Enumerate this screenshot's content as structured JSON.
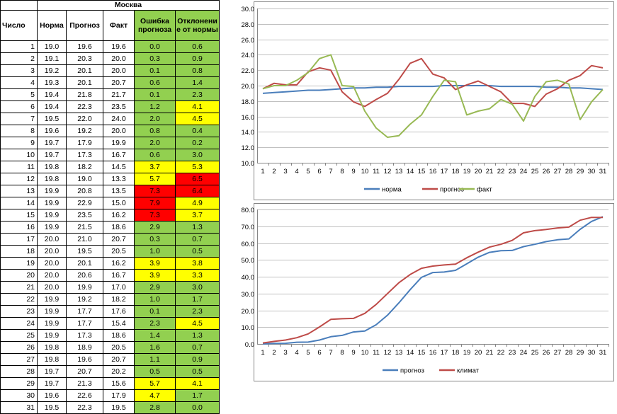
{
  "table": {
    "city": "Москва",
    "headers": {
      "day": "Число",
      "norm": "Норма",
      "forecast": "Прогноз",
      "fact": "Факт",
      "error": "Ошибка прогноза",
      "deviation": "Отклонени е от нормы"
    },
    "rows": [
      {
        "day": "1",
        "norm": "19.0",
        "forecast": "19.6",
        "fact": "19.6",
        "error": "0.0",
        "deviation": "0.6",
        "err_status": "ok",
        "dev_status": "ok"
      },
      {
        "day": "2",
        "norm": "19.1",
        "forecast": "20.3",
        "fact": "20.0",
        "error": "0.3",
        "deviation": "0.9",
        "err_status": "ok",
        "dev_status": "ok"
      },
      {
        "day": "3",
        "norm": "19.2",
        "forecast": "20.1",
        "fact": "20.0",
        "error": "0.1",
        "deviation": "0.8",
        "err_status": "ok",
        "dev_status": "ok"
      },
      {
        "day": "4",
        "norm": "19.3",
        "forecast": "20.1",
        "fact": "20.7",
        "error": "0.6",
        "deviation": "1.4",
        "err_status": "ok",
        "dev_status": "ok"
      },
      {
        "day": "5",
        "norm": "19.4",
        "forecast": "21.8",
        "fact": "21.7",
        "error": "0.1",
        "deviation": "2.3",
        "err_status": "ok",
        "dev_status": "ok"
      },
      {
        "day": "6",
        "norm": "19.4",
        "forecast": "22.3",
        "fact": "23.5",
        "error": "1.2",
        "deviation": "4.1",
        "err_status": "ok",
        "dev_status": "warn"
      },
      {
        "day": "7",
        "norm": "19.5",
        "forecast": "22.0",
        "fact": "24.0",
        "error": "2.0",
        "deviation": "4.5",
        "err_status": "ok",
        "dev_status": "warn"
      },
      {
        "day": "8",
        "norm": "19.6",
        "forecast": "19.2",
        "fact": "20.0",
        "error": "0.8",
        "deviation": "0.4",
        "err_status": "ok",
        "dev_status": "ok"
      },
      {
        "day": "9",
        "norm": "19.7",
        "forecast": "17.9",
        "fact": "19.9",
        "error": "2.0",
        "deviation": "0.2",
        "err_status": "ok",
        "dev_status": "ok"
      },
      {
        "day": "10",
        "norm": "19.7",
        "forecast": "17.3",
        "fact": "16.7",
        "error": "0.6",
        "deviation": "3.0",
        "err_status": "ok",
        "dev_status": "ok"
      },
      {
        "day": "11",
        "norm": "19.8",
        "forecast": "18.2",
        "fact": "14.5",
        "error": "3.7",
        "deviation": "5.3",
        "err_status": "warn",
        "dev_status": "warn"
      },
      {
        "day": "12",
        "norm": "19.8",
        "forecast": "19.0",
        "fact": "13.3",
        "error": "5.7",
        "deviation": "6.5",
        "err_status": "warn",
        "dev_status": "bad"
      },
      {
        "day": "13",
        "norm": "19.9",
        "forecast": "20.8",
        "fact": "13.5",
        "error": "7.3",
        "deviation": "6.4",
        "err_status": "bad",
        "dev_status": "bad"
      },
      {
        "day": "14",
        "norm": "19.9",
        "forecast": "22.9",
        "fact": "15.0",
        "error": "7.9",
        "deviation": "4.9",
        "err_status": "bad",
        "dev_status": "warn"
      },
      {
        "day": "15",
        "norm": "19.9",
        "forecast": "23.5",
        "fact": "16.2",
        "error": "7.3",
        "deviation": "3.7",
        "err_status": "bad",
        "dev_status": "warn"
      },
      {
        "day": "16",
        "norm": "19.9",
        "forecast": "21.5",
        "fact": "18.6",
        "error": "2.9",
        "deviation": "1.3",
        "err_status": "ok",
        "dev_status": "ok"
      },
      {
        "day": "17",
        "norm": "20.0",
        "forecast": "21.0",
        "fact": "20.7",
        "error": "0.3",
        "deviation": "0.7",
        "err_status": "ok",
        "dev_status": "ok"
      },
      {
        "day": "18",
        "norm": "20.0",
        "forecast": "19.5",
        "fact": "20.5",
        "error": "1.0",
        "deviation": "0.5",
        "err_status": "ok",
        "dev_status": "ok"
      },
      {
        "day": "19",
        "norm": "20.0",
        "forecast": "20.1",
        "fact": "16.2",
        "error": "3.9",
        "deviation": "3.8",
        "err_status": "warn",
        "dev_status": "warn"
      },
      {
        "day": "20",
        "norm": "20.0",
        "forecast": "20.6",
        "fact": "16.7",
        "error": "3.9",
        "deviation": "3.3",
        "err_status": "warn",
        "dev_status": "warn"
      },
      {
        "day": "21",
        "norm": "20.0",
        "forecast": "19.9",
        "fact": "17.0",
        "error": "2.9",
        "deviation": "3.0",
        "err_status": "ok",
        "dev_status": "ok"
      },
      {
        "day": "22",
        "norm": "19.9",
        "forecast": "19.2",
        "fact": "18.2",
        "error": "1.0",
        "deviation": "1.7",
        "err_status": "ok",
        "dev_status": "ok"
      },
      {
        "day": "23",
        "norm": "19.9",
        "forecast": "17.7",
        "fact": "17.6",
        "error": "0.1",
        "deviation": "2.3",
        "err_status": "ok",
        "dev_status": "ok"
      },
      {
        "day": "24",
        "norm": "19.9",
        "forecast": "17.7",
        "fact": "15.4",
        "error": "2.3",
        "deviation": "4.5",
        "err_status": "ok",
        "dev_status": "warn"
      },
      {
        "day": "25",
        "norm": "19.9",
        "forecast": "17.3",
        "fact": "18.6",
        "error": "1.4",
        "deviation": "1.3",
        "err_status": "ok",
        "dev_status": "ok"
      },
      {
        "day": "26",
        "norm": "19.8",
        "forecast": "18.9",
        "fact": "20.5",
        "error": "1.6",
        "deviation": "0.7",
        "err_status": "ok",
        "dev_status": "ok"
      },
      {
        "day": "27",
        "norm": "19.8",
        "forecast": "19.6",
        "fact": "20.7",
        "error": "1.1",
        "deviation": "0.9",
        "err_status": "ok",
        "dev_status": "ok"
      },
      {
        "day": "28",
        "norm": "19.7",
        "forecast": "20.7",
        "fact": "20.2",
        "error": "0.5",
        "deviation": "0.5",
        "err_status": "ok",
        "dev_status": "ok"
      },
      {
        "day": "29",
        "norm": "19.7",
        "forecast": "21.3",
        "fact": "15.6",
        "error": "5.7",
        "deviation": "4.1",
        "err_status": "warn",
        "dev_status": "warn"
      },
      {
        "day": "30",
        "norm": "19.6",
        "forecast": "22.6",
        "fact": "17.9",
        "error": "4.7",
        "deviation": "1.7",
        "err_status": "warn",
        "dev_status": "ok"
      },
      {
        "day": "31",
        "norm": "19.5",
        "forecast": "22.3",
        "fact": "19.5",
        "error": "2.8",
        "deviation": "0.0",
        "err_status": "ok",
        "dev_status": "ok"
      }
    ]
  },
  "colors": {
    "ok": "#92d050",
    "warn": "#ffff00",
    "bad": "#ff0000"
  },
  "chart_data": [
    {
      "type": "line",
      "x": [
        1,
        2,
        3,
        4,
        5,
        6,
        7,
        8,
        9,
        10,
        11,
        12,
        13,
        14,
        15,
        16,
        17,
        18,
        19,
        20,
        21,
        22,
        23,
        24,
        25,
        26,
        27,
        28,
        29,
        30,
        31
      ],
      "ylim": [
        10,
        30
      ],
      "yticks": [
        "10.0",
        "12.0",
        "14.0",
        "16.0",
        "18.0",
        "20.0",
        "22.0",
        "24.0",
        "26.0",
        "28.0",
        "30.0"
      ],
      "grid": true,
      "legend": "bottom",
      "series": [
        {
          "name": "норма",
          "color": "#4a7ebb",
          "values": [
            19.0,
            19.1,
            19.2,
            19.3,
            19.4,
            19.4,
            19.5,
            19.6,
            19.7,
            19.7,
            19.8,
            19.8,
            19.9,
            19.9,
            19.9,
            19.9,
            20.0,
            20.0,
            20.0,
            20.0,
            20.0,
            19.9,
            19.9,
            19.9,
            19.9,
            19.8,
            19.8,
            19.7,
            19.7,
            19.6,
            19.5
          ]
        },
        {
          "name": "прогноз",
          "color": "#be4b48",
          "values": [
            19.6,
            20.3,
            20.1,
            20.1,
            21.8,
            22.3,
            22.0,
            19.2,
            17.9,
            17.3,
            18.2,
            19.0,
            20.8,
            22.9,
            23.5,
            21.5,
            21.0,
            19.5,
            20.1,
            20.6,
            19.9,
            19.2,
            17.7,
            17.7,
            17.3,
            18.9,
            19.6,
            20.7,
            21.3,
            22.6,
            22.3
          ]
        },
        {
          "name": "факт",
          "color": "#98b954",
          "values": [
            19.6,
            20.0,
            20.0,
            20.7,
            21.7,
            23.5,
            24.0,
            20.0,
            19.9,
            16.7,
            14.5,
            13.3,
            13.5,
            15.0,
            16.2,
            18.6,
            20.7,
            20.5,
            16.2,
            16.7,
            17.0,
            18.2,
            17.6,
            15.4,
            18.6,
            20.5,
            20.7,
            20.2,
            15.6,
            17.9,
            19.5
          ]
        }
      ]
    },
    {
      "type": "line",
      "x": [
        1,
        2,
        3,
        4,
        5,
        6,
        7,
        8,
        9,
        10,
        11,
        12,
        13,
        14,
        15,
        16,
        17,
        18,
        19,
        20,
        21,
        22,
        23,
        24,
        25,
        26,
        27,
        28,
        29,
        30,
        31
      ],
      "ylim": [
        0,
        80
      ],
      "yticks": [
        "0.0",
        "10.0",
        "20.0",
        "30.0",
        "40.0",
        "50.0",
        "60.0",
        "70.0",
        "80.0"
      ],
      "grid": true,
      "legend": "bottom",
      "series": [
        {
          "name": "прогноз",
          "color": "#4a7ebb",
          "values": [
            0.0,
            0.3,
            0.4,
            1.0,
            1.1,
            2.3,
            4.3,
            5.1,
            7.1,
            7.7,
            11.4,
            17.1,
            24.4,
            32.3,
            39.6,
            42.5,
            42.8,
            43.8,
            47.7,
            51.6,
            54.5,
            55.5,
            55.6,
            57.9,
            59.3,
            60.9,
            62.0,
            62.5,
            68.2,
            72.9,
            75.7
          ]
        },
        {
          "name": "климат",
          "color": "#be4b48",
          "values": [
            0.6,
            1.5,
            2.3,
            3.7,
            6.0,
            10.1,
            14.6,
            15.0,
            15.2,
            18.2,
            23.5,
            30.0,
            36.4,
            41.3,
            45.0,
            46.3,
            47.0,
            47.5,
            51.3,
            54.6,
            57.6,
            59.3,
            61.6,
            66.1,
            67.4,
            68.1,
            69.0,
            69.5,
            73.6,
            75.3,
            75.3
          ]
        }
      ]
    }
  ]
}
